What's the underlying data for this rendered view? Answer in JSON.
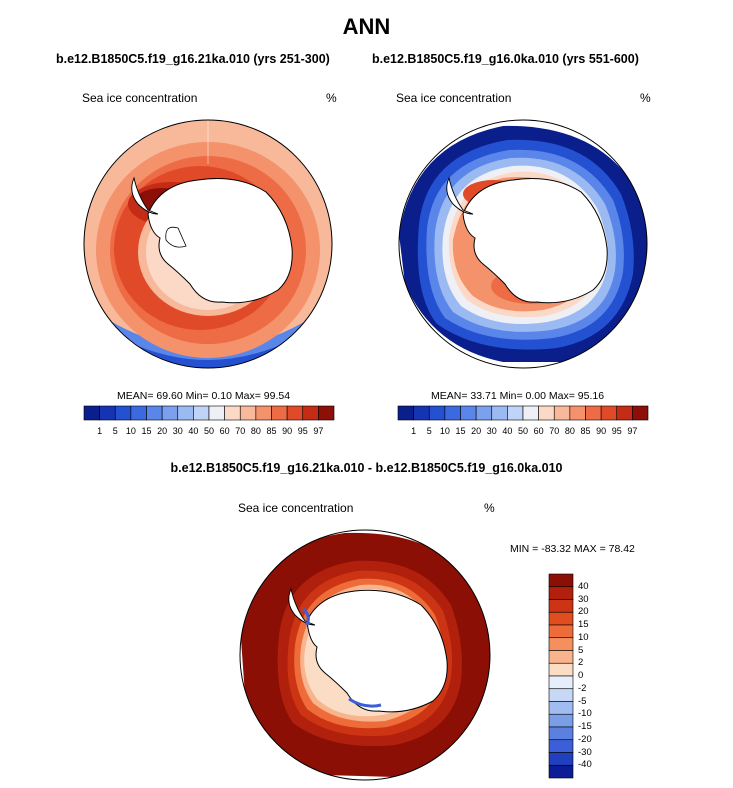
{
  "title": "ANN",
  "panels": [
    {
      "run": "b.e12.B1850C5.f19_g16.21ka.010 (yrs 251-300)",
      "variable": "Sea ice concentration",
      "units": "%",
      "stats": {
        "mean": "69.60",
        "min": "0.10",
        "max": "99.54"
      },
      "stats_text": "MEAN=  69.60  Min=   0.10  Max=  99.54"
    },
    {
      "run": "b.e12.B1850C5.f19_g16.0ka.010 (yrs 551-600)",
      "variable": "Sea ice concentration",
      "units": "%",
      "stats": {
        "mean": "33.71",
        "min": "0.00",
        "max": "95.16"
      },
      "stats_text": "MEAN=  33.71  Min=   0.00  Max=  95.16"
    }
  ],
  "colorbar": {
    "labels": [
      "1",
      "5",
      "10",
      "15",
      "20",
      "30",
      "40",
      "50",
      "60",
      "70",
      "80",
      "85",
      "90",
      "95",
      "97"
    ],
    "colors": [
      "#0a1e8c",
      "#1434b4",
      "#2450d2",
      "#3b6ae0",
      "#5a86ea",
      "#7aa0ee",
      "#9cbaf2",
      "#c0d4f8",
      "#eef0f6",
      "#fbd9c6",
      "#f8b89a",
      "#f4926c",
      "#ee6c45",
      "#e04a28",
      "#c42c16",
      "#8c1008"
    ]
  },
  "difference": {
    "title": "b.e12.B1850C5.f19_g16.21ka.010 - b.e12.B1850C5.f19_g16.0ka.010",
    "variable": "Sea ice concentration",
    "units": "%",
    "minmax_text": "MIN = -83.32  MAX = 78.42",
    "min": "-83.32",
    "max": "78.42",
    "colorbar": {
      "labels": [
        "40",
        "30",
        "20",
        "15",
        "10",
        "5",
        "2",
        "0",
        "-2",
        "-5",
        "-10",
        "-15",
        "-20",
        "-30",
        "-40"
      ],
      "colors": [
        "#8c0f05",
        "#b0200c",
        "#cc3414",
        "#e04e20",
        "#ee6c3a",
        "#f4905e",
        "#f8b48c",
        "#fbdcc4",
        "#e6eefa",
        "#c6d8f6",
        "#a0bcf0",
        "#7a9ee8",
        "#5a80e0",
        "#3c5ed6",
        "#2040c0",
        "#0c1c96"
      ]
    }
  },
  "colors": {
    "land": "#ffffff",
    "coast": "#000000",
    "ocean_open": "#ffffff"
  }
}
